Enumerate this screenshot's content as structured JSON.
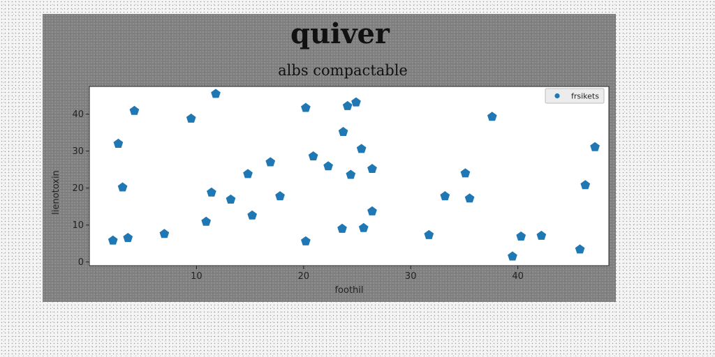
{
  "chart_data": {
    "type": "scatter",
    "title": "quiver",
    "subtitle": "albs compactable",
    "xlabel": "foothil",
    "ylabel": "lienotoxin",
    "xlim": [
      0,
      48.5
    ],
    "ylim": [
      -1,
      47.5
    ],
    "xticks": [
      10,
      20,
      30,
      40
    ],
    "yticks": [
      0,
      10,
      20,
      30,
      40
    ],
    "grid": false,
    "legend_position": "top-right",
    "marker": "pentagon",
    "series": [
      {
        "name": "frsikets",
        "color": "#1f77b4",
        "points": [
          [
            2.2,
            5.8
          ],
          [
            2.7,
            32.0
          ],
          [
            3.1,
            20.2
          ],
          [
            3.6,
            6.5
          ],
          [
            4.2,
            40.9
          ],
          [
            7.0,
            7.6
          ],
          [
            9.5,
            38.8
          ],
          [
            10.9,
            10.9
          ],
          [
            11.4,
            18.8
          ],
          [
            11.8,
            45.5
          ],
          [
            13.2,
            16.9
          ],
          [
            14.8,
            23.8
          ],
          [
            15.2,
            12.6
          ],
          [
            16.9,
            27.0
          ],
          [
            17.8,
            17.8
          ],
          [
            20.2,
            41.7
          ],
          [
            20.2,
            5.6
          ],
          [
            20.9,
            28.6
          ],
          [
            22.3,
            25.9
          ],
          [
            23.6,
            9.0
          ],
          [
            23.7,
            35.2
          ],
          [
            24.1,
            42.2
          ],
          [
            24.4,
            23.6
          ],
          [
            24.9,
            43.2
          ],
          [
            25.4,
            30.6
          ],
          [
            25.6,
            9.2
          ],
          [
            26.4,
            25.2
          ],
          [
            26.4,
            13.7
          ],
          [
            31.7,
            7.3
          ],
          [
            33.2,
            17.8
          ],
          [
            35.1,
            24.0
          ],
          [
            35.5,
            17.2
          ],
          [
            37.6,
            39.3
          ],
          [
            39.5,
            1.5
          ],
          [
            40.3,
            6.9
          ],
          [
            42.2,
            7.1
          ],
          [
            45.8,
            3.4
          ],
          [
            46.3,
            20.8
          ],
          [
            47.2,
            31.1
          ]
        ]
      }
    ]
  }
}
